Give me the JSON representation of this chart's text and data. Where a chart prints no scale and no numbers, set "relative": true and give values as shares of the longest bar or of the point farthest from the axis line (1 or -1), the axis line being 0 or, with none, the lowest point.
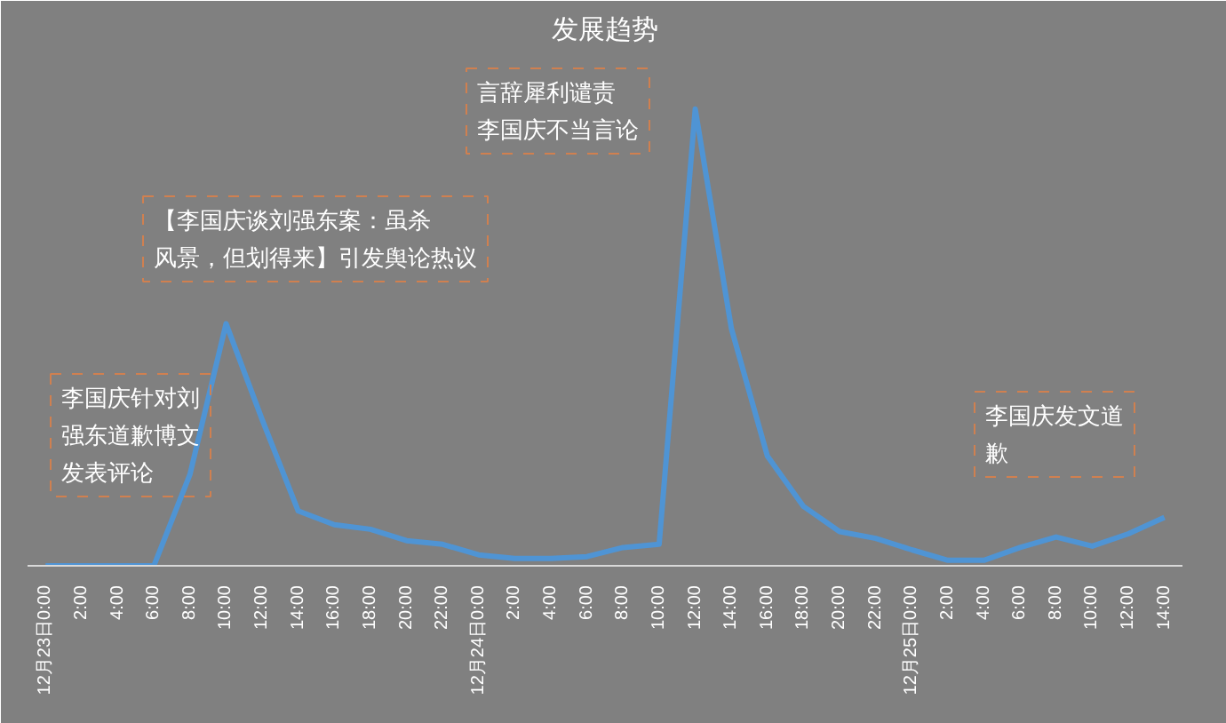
{
  "chart_data": {
    "type": "line",
    "title": "发展趋势",
    "relative": true,
    "categories": [
      "12月23日0:00",
      "2:00",
      "4:00",
      "6:00",
      "8:00",
      "10:00",
      "12:00",
      "14:00",
      "16:00",
      "18:00",
      "20:00",
      "22:00",
      "12月24日0:00",
      "2:00",
      "4:00",
      "6:00",
      "8:00",
      "10:00",
      "12:00",
      "14:00",
      "16:00",
      "18:00",
      "20:00",
      "22:00",
      "12月25日0:00",
      "2:00",
      "4:00",
      "6:00",
      "8:00",
      "10:00",
      "12:00",
      "14:00"
    ],
    "series": [
      {
        "color": "#4f94d4",
        "values": [
          0,
          0,
          0,
          0,
          0.2,
          0.53,
          0.32,
          0.12,
          0.09,
          0.08,
          0.055,
          0.047,
          0.024,
          0.016,
          0.016,
          0.02,
          0.04,
          0.047,
          1,
          0.52,
          0.24,
          0.13,
          0.075,
          0.06,
          0.035,
          0.012,
          0.012,
          0.04,
          0.063,
          0.043,
          0.07,
          0.106
        ]
      }
    ],
    "annotations": [
      "李国庆针对刘强东道歉博文发表评论",
      "【李国庆谈刘强东案：虽杀风景，但划得来】引发舆论热议",
      "言辞犀利谴责李国庆不当言论",
      "李国庆发文道歉"
    ]
  }
}
